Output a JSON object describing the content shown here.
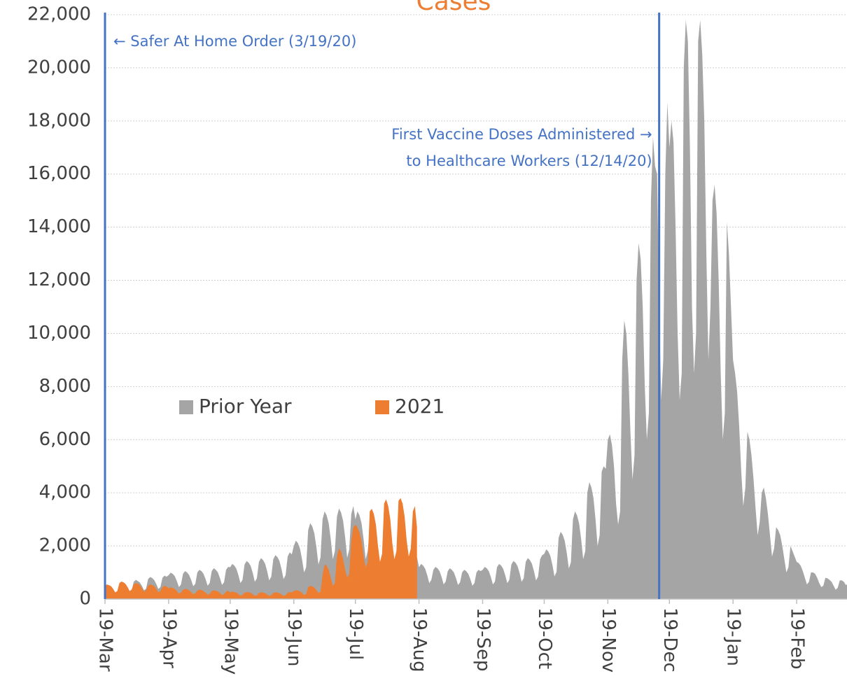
{
  "chart_data": {
    "type": "area",
    "title": "Cases",
    "categories": [
      "19-Mar",
      null,
      null,
      null,
      null,
      null,
      null,
      null,
      null,
      null,
      null,
      null,
      null,
      null,
      null,
      null,
      null,
      null,
      null,
      null,
      null,
      null,
      null,
      null,
      null,
      null,
      null,
      null,
      null,
      null,
      null,
      "19-Apr",
      null,
      null,
      null,
      null,
      null,
      null,
      null,
      null,
      null,
      null,
      null,
      null,
      null,
      null,
      null,
      null,
      null,
      null,
      null,
      null,
      null,
      null,
      null,
      null,
      null,
      null,
      null,
      null,
      null,
      "19-May",
      null,
      null,
      null,
      null,
      null,
      null,
      null,
      null,
      null,
      null,
      null,
      null,
      null,
      null,
      null,
      null,
      null,
      null,
      null,
      null,
      null,
      null,
      null,
      null,
      null,
      null,
      null,
      null,
      null,
      null,
      "19-Jun",
      null,
      null,
      null,
      null,
      null,
      null,
      null,
      null,
      null,
      null,
      null,
      null,
      null,
      null,
      null,
      null,
      null,
      null,
      null,
      null,
      null,
      null,
      null,
      null,
      null,
      null,
      null,
      null,
      null,
      "19-Jul",
      null,
      null,
      null,
      null,
      null,
      null,
      null,
      null,
      null,
      null,
      null,
      null,
      null,
      null,
      null,
      null,
      null,
      null,
      null,
      null,
      null,
      null,
      null,
      null,
      null,
      null,
      null,
      null,
      null,
      null,
      "19-Aug",
      null,
      null,
      null,
      null,
      null,
      null,
      null,
      null,
      null,
      null,
      null,
      null,
      null,
      null,
      null,
      null,
      null,
      null,
      null,
      null,
      null,
      null,
      null,
      null,
      null,
      null,
      null,
      null,
      null,
      null,
      "19-Sep",
      null,
      null,
      null,
      null,
      null,
      null,
      null,
      null,
      null,
      null,
      null,
      null,
      null,
      null,
      null,
      null,
      null,
      null,
      null,
      null,
      null,
      null,
      null,
      null,
      null,
      null,
      null,
      null,
      null,
      "19-Oct",
      null,
      null,
      null,
      null,
      null,
      null,
      null,
      null,
      null,
      null,
      null,
      null,
      null,
      null,
      null,
      null,
      null,
      null,
      null,
      null,
      null,
      null,
      null,
      null,
      null,
      null,
      null,
      null,
      null,
      null,
      "19-Nov",
      null,
      null,
      null,
      null,
      null,
      null,
      null,
      null,
      null,
      null,
      null,
      null,
      null,
      null,
      null,
      null,
      null,
      null,
      null,
      null,
      null,
      null,
      null,
      null,
      null,
      null,
      null,
      null,
      null,
      "19-Dec",
      null,
      null,
      null,
      null,
      null,
      null,
      null,
      null,
      null,
      null,
      null,
      null,
      null,
      null,
      null,
      null,
      null,
      null,
      null,
      null,
      null,
      null,
      null,
      null,
      null,
      null,
      null,
      null,
      null,
      null,
      "19-Jan",
      null,
      null,
      null,
      null,
      null,
      null,
      null,
      null,
      null,
      null,
      null,
      null,
      null,
      null,
      null,
      null,
      null,
      null,
      null,
      null,
      null,
      null,
      null,
      null,
      null,
      null,
      null,
      null,
      null,
      null,
      "19-Feb",
      null,
      null,
      null,
      null,
      null,
      null,
      null,
      null,
      null,
      null,
      null,
      null,
      null,
      null,
      null,
      null,
      null,
      null,
      null,
      null,
      null,
      null,
      null,
      null,
      null
    ],
    "series": [
      {
        "name": "Prior Year",
        "color": "#A5A5A5",
        "values": [
          400,
          440,
          420,
          380,
          300,
          200,
          240,
          550,
          600,
          580,
          520,
          410,
          280,
          330,
          650,
          720,
          680,
          620,
          490,
          330,
          390,
          750,
          830,
          790,
          710,
          560,
          380,
          450,
          800,
          880,
          840,
          900,
          990,
          950,
          860,
          680,
          450,
          540,
          950,
          1050,
          1000,
          900,
          710,
          480,
          570,
          1000,
          1100,
          1050,
          950,
          750,
          500,
          600,
          1050,
          1160,
          1100,
          1000,
          790,
          530,
          630,
          1100,
          1210,
          1200,
          1320,
          1260,
          1140,
          900,
          600,
          720,
          1300,
          1430,
          1370,
          1240,
          980,
          650,
          780,
          1400,
          1540,
          1470,
          1330,
          1050,
          700,
          840,
          1500,
          1650,
          1580,
          1430,
          1130,
          750,
          900,
          1600,
          1760,
          1680,
          2000,
          2200,
          2100,
          1900,
          1500,
          1000,
          1200,
          2600,
          2860,
          2730,
          2470,
          1950,
          1300,
          1560,
          3000,
          3300,
          3150,
          2850,
          2250,
          1500,
          1800,
          3100,
          3410,
          3260,
          2950,
          2330,
          1550,
          1860,
          3200,
          3500,
          3000,
          3300,
          3150,
          2850,
          2250,
          1500,
          1800,
          2600,
          2860,
          2730,
          2470,
          1950,
          1300,
          1560,
          2200,
          2420,
          2310,
          2090,
          1650,
          1100,
          1320,
          1800,
          1980,
          1890,
          1710,
          1350,
          900,
          1080,
          1500,
          1650,
          1580,
          1200,
          1320,
          1260,
          1140,
          900,
          600,
          720,
          1100,
          1210,
          1160,
          1050,
          830,
          550,
          660,
          1050,
          1160,
          1100,
          1000,
          790,
          530,
          630,
          1000,
          1100,
          1050,
          950,
          750,
          500,
          600,
          1000,
          1100,
          1050,
          1100,
          1210,
          1160,
          1050,
          830,
          550,
          660,
          1200,
          1320,
          1260,
          1140,
          900,
          600,
          720,
          1300,
          1430,
          1370,
          1240,
          980,
          650,
          780,
          1400,
          1540,
          1470,
          1330,
          1050,
          700,
          840,
          1500,
          1650,
          1700,
          1870,
          1790,
          1620,
          1280,
          850,
          1020,
          2300,
          2530,
          2420,
          2190,
          1730,
          1150,
          1380,
          3000,
          3300,
          3150,
          2850,
          2250,
          1500,
          1800,
          4000,
          4400,
          4200,
          3800,
          3000,
          2000,
          2400,
          4800,
          5000,
          4900,
          6000,
          6200,
          5800,
          5000,
          3600,
          2800,
          3300,
          9000,
          10500,
          10000,
          8500,
          6300,
          4500,
          5400,
          12000,
          13400,
          12800,
          11000,
          8000,
          6000,
          7000,
          15000,
          17400,
          16300,
          16000,
          11000,
          7500,
          9000,
          16000,
          18700,
          17000,
          18000,
          17200,
          14000,
          10000,
          7500,
          8500,
          20000,
          21800,
          21000,
          17000,
          11000,
          8500,
          10000,
          21000,
          21800,
          20500,
          18000,
          13000,
          9000,
          11000,
          15000,
          15600,
          14500,
          12000,
          8500,
          6000,
          7000,
          14200,
          13000,
          11000,
          9000,
          8500,
          7800,
          6500,
          4800,
          3500,
          4200,
          6300,
          6000,
          5400,
          4500,
          3400,
          2400,
          2900,
          4000,
          4200,
          3800,
          3200,
          2400,
          1600,
          1900,
          2700,
          2600,
          2400,
          2000,
          1500,
          1000,
          1200,
          2000,
          1800,
          1600,
          1400,
          1350,
          1250,
          1050,
          800,
          550,
          650,
          1000,
          1000,
          950,
          800,
          600,
          450,
          500,
          800,
          780,
          720,
          650,
          500,
          350,
          420,
          700,
          700,
          650,
          520,
          600
        ]
      },
      {
        "name": "2021",
        "color": "#ED7D31",
        "values": [
          500,
          550,
          520,
          480,
          380,
          250,
          300,
          600,
          660,
          630,
          570,
          450,
          300,
          360,
          550,
          600,
          580,
          520,
          410,
          280,
          330,
          500,
          550,
          520,
          480,
          380,
          250,
          300,
          450,
          500,
          470,
          400,
          440,
          420,
          380,
          300,
          200,
          240,
          350,
          380,
          370,
          330,
          260,
          180,
          210,
          320,
          350,
          340,
          300,
          240,
          160,
          190,
          300,
          330,
          310,
          290,
          230,
          150,
          180,
          280,
          310,
          250,
          280,
          260,
          240,
          190,
          130,
          150,
          240,
          260,
          250,
          230,
          180,
          120,
          140,
          230,
          250,
          240,
          220,
          170,
          120,
          140,
          230,
          250,
          240,
          220,
          170,
          120,
          140,
          240,
          260,
          250,
          300,
          330,
          320,
          290,
          230,
          150,
          180,
          450,
          500,
          470,
          430,
          340,
          230,
          270,
          900,
          1300,
          1250,
          1100,
          800,
          500,
          600,
          1600,
          1900,
          1800,
          1500,
          1100,
          800,
          950,
          2200,
          2700,
          2800,
          2700,
          2500,
          2200,
          1600,
          1200,
          1400,
          3300,
          3400,
          3200,
          2800,
          2000,
          1400,
          1700,
          3600,
          3750,
          3500,
          3000,
          2100,
          1500,
          1800,
          3700,
          3800,
          3600,
          3100,
          2200,
          1600,
          1900,
          3300,
          3500,
          2700,
          null,
          null,
          null,
          null,
          null,
          null,
          null,
          null,
          null,
          null,
          null,
          null,
          null,
          null,
          null,
          null,
          null,
          null,
          null,
          null,
          null,
          null,
          null,
          null,
          null,
          null,
          null,
          null,
          null,
          null,
          null,
          null,
          null,
          null,
          null,
          null,
          null,
          null,
          null,
          null,
          null,
          null,
          null,
          null,
          null,
          null,
          null,
          null,
          null,
          null,
          null,
          null,
          null,
          null,
          null,
          null,
          null,
          null,
          null,
          null,
          null,
          null,
          null,
          null,
          null,
          null,
          null,
          null,
          null,
          null,
          null,
          null,
          null,
          null,
          null,
          null,
          null,
          null,
          null,
          null,
          null,
          null,
          null,
          null,
          null,
          null,
          null,
          null,
          null,
          null,
          null,
          null,
          null,
          null,
          null,
          null,
          null,
          null,
          null,
          null,
          null,
          null,
          null,
          null,
          null,
          null,
          null,
          null,
          null,
          null,
          null,
          null,
          null,
          null,
          null,
          null,
          null,
          null,
          null,
          null,
          null,
          null,
          null,
          null,
          null,
          null,
          null,
          null,
          null,
          null,
          null,
          null,
          null,
          null,
          null,
          null,
          null,
          null,
          null,
          null,
          null,
          null,
          null,
          null,
          null,
          null,
          null,
          null,
          null,
          null,
          null,
          null,
          null,
          null,
          null,
          null,
          null,
          null,
          null,
          null,
          null,
          null,
          null,
          null,
          null,
          null,
          null,
          null,
          null,
          null,
          null,
          null,
          null,
          null,
          null,
          null,
          null,
          null,
          null,
          null,
          null,
          null,
          null,
          null,
          null,
          null,
          null,
          null,
          null,
          null,
          null,
          null,
          null,
          null,
          null,
          null,
          null,
          null,
          null,
          null,
          null,
          null,
          null,
          null,
          null,
          null,
          null,
          null,
          null,
          null
        ]
      }
    ],
    "ylim": [
      0,
      22000
    ],
    "yticks": [
      0,
      {
        "value": 2000,
        "label": "2,000"
      },
      {
        "value": 4000,
        "label": "4,000"
      },
      {
        "value": 6000,
        "label": "6,000"
      },
      {
        "value": 8000,
        "label": "8,000"
      },
      {
        "value": 10000,
        "label": "10,000"
      },
      {
        "value": 12000,
        "label": "12,000"
      },
      {
        "value": 14000,
        "label": "14,000"
      },
      {
        "value": 16000,
        "label": "16,000"
      },
      {
        "value": 18000,
        "label": "18,000"
      },
      {
        "value": 20000,
        "label": "20,000"
      },
      {
        "value": 22000,
        "label": "22,000"
      }
    ],
    "grid": true,
    "legend": "center-left",
    "annotations": [
      {
        "index": 0,
        "side": "right",
        "lines": [
          "← Safer At Home Order (3/19/20)"
        ],
        "color": "#4472C4"
      },
      {
        "index": 270,
        "side": "left",
        "lines": [
          "First Vaccine Doses Administered →",
          "to Healthcare Workers (12/14/20)"
        ],
        "color": "#4472C4"
      }
    ]
  }
}
